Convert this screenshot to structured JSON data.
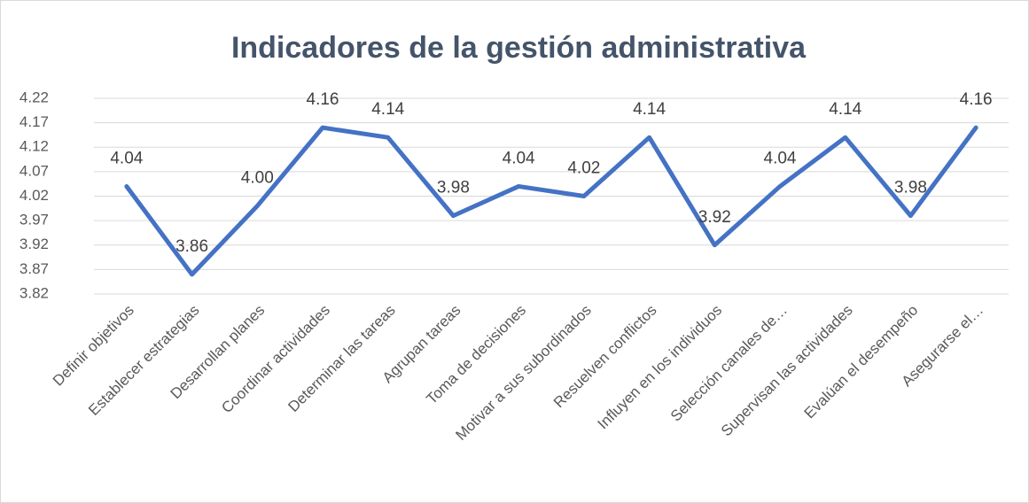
{
  "chart_data": {
    "type": "line",
    "title": "Indicadores de la gestión administrativa",
    "categories": [
      "Definir objetivos",
      "Establecer estrategias",
      "Desarrollan planes",
      "Coordinar actividades",
      "Determinar las tareas",
      "Agrupan tareas",
      "Toma de decisiones",
      "Motivar a sus subordinados",
      "Resuelven conflictos",
      "Influyen en los individuos",
      "Selección canales de…",
      "Supervisan las actividades",
      "Evalúan el desempeño",
      "Asegurarse el…"
    ],
    "series": [
      {
        "name": "Indicadores",
        "color": "#4472c4",
        "values": [
          4.04,
          3.86,
          4.0,
          4.16,
          4.14,
          3.98,
          4.04,
          4.02,
          4.14,
          3.92,
          4.04,
          4.14,
          3.98,
          4.16
        ],
        "value_labels": [
          "4.04",
          "3.86",
          "4.00",
          "4.16",
          "4.14",
          "3.98",
          "4.04",
          "4.02",
          "4.14",
          "3.92",
          "4.04",
          "4.14",
          "3.98",
          "4.16"
        ]
      }
    ],
    "ylim": [
      3.82,
      4.22
    ],
    "yticks": [
      3.82,
      3.87,
      3.92,
      3.97,
      4.02,
      4.07,
      4.12,
      4.17,
      4.22
    ],
    "grid": true
  }
}
